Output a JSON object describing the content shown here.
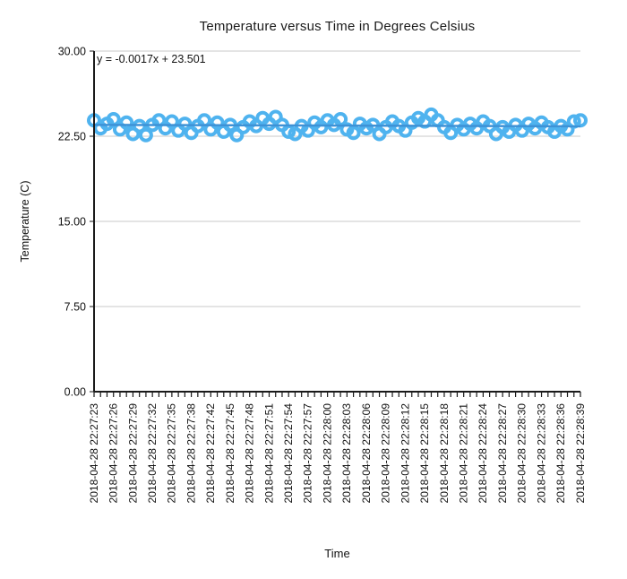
{
  "chart_data": {
    "type": "scatter",
    "title": "Temperature versus Time in Degrees Celsius",
    "xlabel": "Time",
    "ylabel": "Temperature (C)",
    "ylim": [
      0,
      30
    ],
    "grid": "horizontal-only",
    "legend": "none",
    "x_tick_label_every": 3,
    "y_ticks": {
      "values": [
        0,
        7.5,
        15,
        22.5,
        30
      ],
      "labels": [
        "0.00",
        "7.50",
        "15.00",
        "22.50",
        "30.00"
      ]
    },
    "trendline": {
      "label": "y = -0.0017x + 23.501",
      "slope": -0.0017,
      "intercept": 23.501
    },
    "colors": {
      "point": "#4FB3EF",
      "trendline": "#3E92D6",
      "gridline": "#C8C8C8",
      "axis": "#1a1a1a",
      "text": "#111111"
    },
    "series": [
      {
        "name": "Temperature",
        "x": [
          "2018-04-28 22:27:23",
          "2018-04-28 22:27:24",
          "2018-04-28 22:27:25",
          "2018-04-28 22:27:26",
          "2018-04-28 22:27:27",
          "2018-04-28 22:27:28",
          "2018-04-28 22:27:29",
          "2018-04-28 22:27:30",
          "2018-04-28 22:27:31",
          "2018-04-28 22:27:32",
          "2018-04-28 22:27:33",
          "2018-04-28 22:27:34",
          "2018-04-28 22:27:35",
          "2018-04-28 22:27:36",
          "2018-04-28 22:27:37",
          "2018-04-28 22:27:38",
          "2018-04-28 22:27:40",
          "2018-04-28 22:27:41",
          "2018-04-28 22:27:42",
          "2018-04-28 22:27:43",
          "2018-04-28 22:27:44",
          "2018-04-28 22:27:45",
          "2018-04-28 22:27:46",
          "2018-04-28 22:27:47",
          "2018-04-28 22:27:48",
          "2018-04-28 22:27:49",
          "2018-04-28 22:27:50",
          "2018-04-28 22:27:51",
          "2018-04-28 22:27:52",
          "2018-04-28 22:27:53",
          "2018-04-28 22:27:54",
          "2018-04-28 22:27:55",
          "2018-04-28 22:27:56",
          "2018-04-28 22:27:57",
          "2018-04-28 22:27:58",
          "2018-04-28 22:27:59",
          "2018-04-28 22:28:00",
          "2018-04-28 22:28:01",
          "2018-04-28 22:28:02",
          "2018-04-28 22:28:03",
          "2018-04-28 22:28:04",
          "2018-04-28 22:28:05",
          "2018-04-28 22:28:06",
          "2018-04-28 22:28:07",
          "2018-04-28 22:28:08",
          "2018-04-28 22:28:09",
          "2018-04-28 22:28:10",
          "2018-04-28 22:28:11",
          "2018-04-28 22:28:12",
          "2018-04-28 22:28:13",
          "2018-04-28 22:28:14",
          "2018-04-28 22:28:15",
          "2018-04-28 22:28:16",
          "2018-04-28 22:28:17",
          "2018-04-28 22:28:18",
          "2018-04-28 22:28:19",
          "2018-04-28 22:28:20",
          "2018-04-28 22:28:21",
          "2018-04-28 22:28:22",
          "2018-04-28 22:28:23",
          "2018-04-28 22:28:24",
          "2018-04-28 22:28:25",
          "2018-04-28 22:28:26",
          "2018-04-28 22:28:27",
          "2018-04-28 22:28:28",
          "2018-04-28 22:28:29",
          "2018-04-28 22:28:30",
          "2018-04-28 22:28:31",
          "2018-04-28 22:28:32",
          "2018-04-28 22:28:33",
          "2018-04-28 22:28:34",
          "2018-04-28 22:28:35",
          "2018-04-28 22:28:36",
          "2018-04-28 22:28:37",
          "2018-04-28 22:28:38",
          "2018-04-28 22:28:39"
        ],
        "values": [
          23.9,
          23.2,
          23.6,
          24.0,
          23.1,
          23.7,
          22.7,
          23.4,
          22.6,
          23.5,
          23.9,
          23.2,
          23.8,
          23.0,
          23.6,
          22.8,
          23.4,
          23.9,
          23.1,
          23.7,
          22.9,
          23.5,
          22.6,
          23.3,
          23.8,
          23.4,
          24.1,
          23.6,
          24.2,
          23.5,
          22.9,
          22.7,
          23.4,
          23.0,
          23.7,
          23.3,
          23.9,
          23.5,
          24.0,
          23.1,
          22.8,
          23.6,
          23.2,
          23.5,
          22.7,
          23.3,
          23.8,
          23.4,
          23.0,
          23.7,
          24.1,
          23.8,
          24.4,
          23.9,
          23.3,
          22.8,
          23.5,
          23.1,
          23.6,
          23.2,
          23.8,
          23.4,
          22.7,
          23.3,
          22.9,
          23.5,
          23.0,
          23.6,
          23.2,
          23.7,
          23.3,
          22.9,
          23.4,
          23.1,
          23.8,
          23.9
        ]
      }
    ]
  }
}
